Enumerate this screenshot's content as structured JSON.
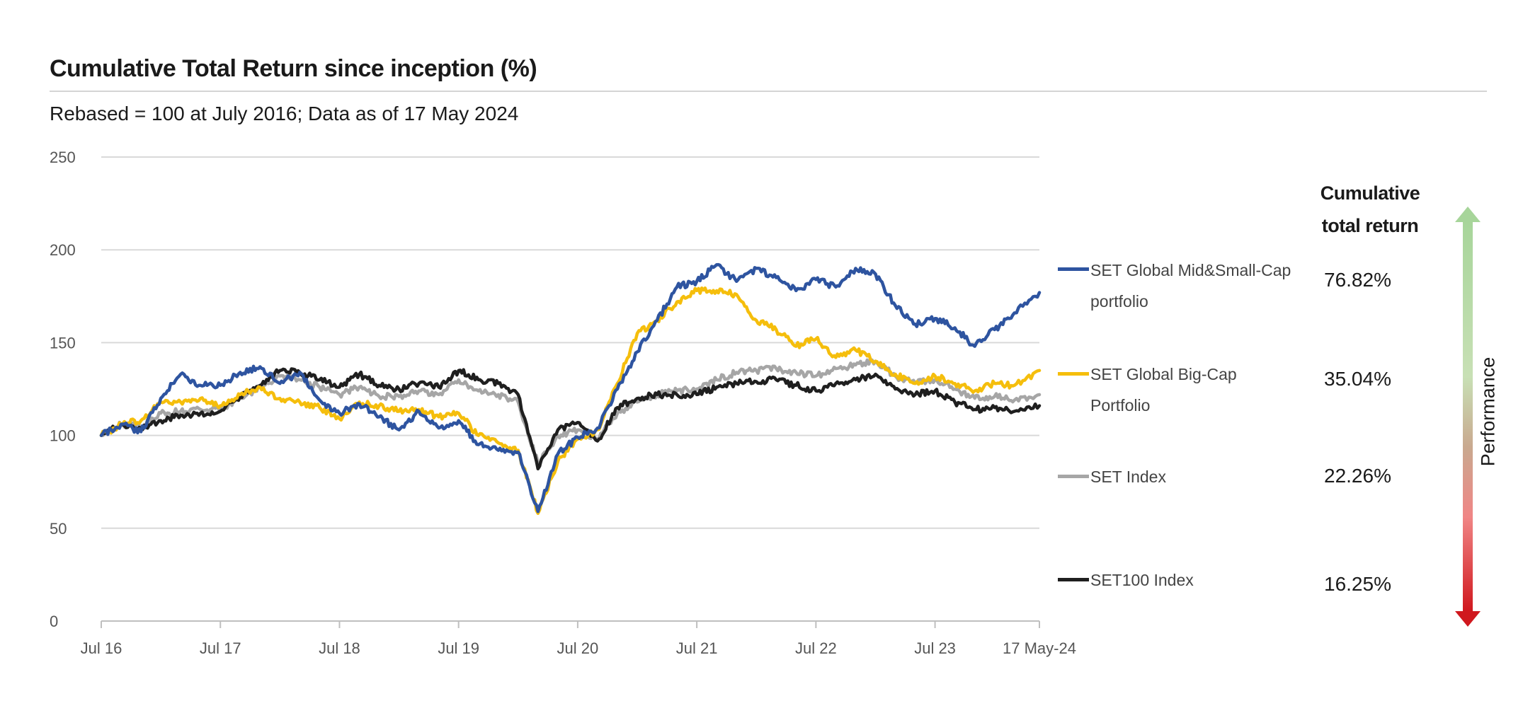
{
  "header": {
    "title": "Cumulative Total Return since inception (%)",
    "subtitle": "Rebased = 100 at July 2016; Data as of 17 May 2024"
  },
  "returns_panel": {
    "heading_line1": "Cumulative",
    "heading_line2": "total return",
    "performance_label": "Performance"
  },
  "chart_data": {
    "type": "line",
    "ylim": [
      0,
      250
    ],
    "yticks": [
      0,
      50,
      100,
      150,
      200,
      250
    ],
    "xlim": [
      "2016-07",
      "2024-05-17"
    ],
    "xticks": [
      {
        "date": "2016-07",
        "label": "Jul 16"
      },
      {
        "date": "2017-07",
        "label": "Jul 17"
      },
      {
        "date": "2018-07",
        "label": "Jul 18"
      },
      {
        "date": "2019-07",
        "label": "Jul 19"
      },
      {
        "date": "2020-07",
        "label": "Jul 20"
      },
      {
        "date": "2021-07",
        "label": "Jul 21"
      },
      {
        "date": "2022-07",
        "label": "Jul 22"
      },
      {
        "date": "2023-07",
        "label": "Jul 23"
      },
      {
        "date": "2024-05-17",
        "label": "17 May-24"
      }
    ],
    "grid": true,
    "legend_position": "right",
    "series": [
      {
        "name_line1": "SET Global Mid&Small-Cap",
        "name_line2": "portfolio",
        "color": "#2e54a0",
        "cumulative_return": "76.82%",
        "points": [
          [
            "2016-07",
            100
          ],
          [
            "2016-09",
            106
          ],
          [
            "2016-11",
            102
          ],
          [
            "2017-01",
            120
          ],
          [
            "2017-03",
            133
          ],
          [
            "2017-05",
            127
          ],
          [
            "2017-07",
            127
          ],
          [
            "2017-09",
            134
          ],
          [
            "2017-11",
            137
          ],
          [
            "2018-01",
            128
          ],
          [
            "2018-03",
            134
          ],
          [
            "2018-05",
            119
          ],
          [
            "2018-07",
            112
          ],
          [
            "2018-09",
            117
          ],
          [
            "2018-11",
            110
          ],
          [
            "2019-01",
            103
          ],
          [
            "2019-03",
            113
          ],
          [
            "2019-05",
            104
          ],
          [
            "2019-07",
            108
          ],
          [
            "2019-09",
            95
          ],
          [
            "2019-11",
            92
          ],
          [
            "2020-01",
            91
          ],
          [
            "2020-03",
            59
          ],
          [
            "2020-05",
            90
          ],
          [
            "2020-07",
            99
          ],
          [
            "2020-09",
            104
          ],
          [
            "2020-11",
            125
          ],
          [
            "2021-01",
            145
          ],
          [
            "2021-03",
            162
          ],
          [
            "2021-05",
            180
          ],
          [
            "2021-07",
            183
          ],
          [
            "2021-09",
            192
          ],
          [
            "2021-11",
            183
          ],
          [
            "2022-01",
            190
          ],
          [
            "2022-03",
            185
          ],
          [
            "2022-05",
            178
          ],
          [
            "2022-07",
            184
          ],
          [
            "2022-09",
            180
          ],
          [
            "2022-11",
            190
          ],
          [
            "2023-01",
            187
          ],
          [
            "2023-03",
            170
          ],
          [
            "2023-05",
            160
          ],
          [
            "2023-07",
            163
          ],
          [
            "2023-09",
            158
          ],
          [
            "2023-11",
            148
          ],
          [
            "2024-01",
            157
          ],
          [
            "2024-03",
            166
          ],
          [
            "2024-05-17",
            177
          ]
        ]
      },
      {
        "name_line1": "SET Global Big-Cap",
        "name_line2": "Portfolio",
        "color": "#f5be0c",
        "cumulative_return": "35.04%",
        "points": [
          [
            "2016-07",
            100
          ],
          [
            "2016-09",
            106
          ],
          [
            "2016-11",
            108
          ],
          [
            "2017-01",
            118
          ],
          [
            "2017-03",
            118
          ],
          [
            "2017-05",
            120
          ],
          [
            "2017-07",
            116
          ],
          [
            "2017-09",
            122
          ],
          [
            "2017-11",
            126
          ],
          [
            "2018-01",
            120
          ],
          [
            "2018-03",
            118
          ],
          [
            "2018-05",
            115
          ],
          [
            "2018-07",
            109
          ],
          [
            "2018-09",
            118
          ],
          [
            "2018-11",
            116
          ],
          [
            "2019-01",
            113
          ],
          [
            "2019-03",
            114
          ],
          [
            "2019-05",
            110
          ],
          [
            "2019-07",
            112
          ],
          [
            "2019-09",
            100
          ],
          [
            "2019-11",
            96
          ],
          [
            "2020-01",
            92
          ],
          [
            "2020-03",
            58
          ],
          [
            "2020-05",
            86
          ],
          [
            "2020-07",
            98
          ],
          [
            "2020-09",
            103
          ],
          [
            "2020-11",
            128
          ],
          [
            "2021-01",
            155
          ],
          [
            "2021-03",
            162
          ],
          [
            "2021-05",
            172
          ],
          [
            "2021-07",
            178
          ],
          [
            "2021-09",
            178
          ],
          [
            "2021-11",
            176
          ],
          [
            "2022-01",
            162
          ],
          [
            "2022-03",
            157
          ],
          [
            "2022-05",
            148
          ],
          [
            "2022-07",
            152
          ],
          [
            "2022-09",
            142
          ],
          [
            "2022-11",
            146
          ],
          [
            "2023-01",
            140
          ],
          [
            "2023-03",
            133
          ],
          [
            "2023-05",
            128
          ],
          [
            "2023-07",
            132
          ],
          [
            "2023-09",
            128
          ],
          [
            "2023-11",
            124
          ],
          [
            "2024-01",
            128
          ],
          [
            "2024-03",
            127
          ],
          [
            "2024-05-17",
            135
          ]
        ]
      },
      {
        "name_line1": "SET Index",
        "name_line2": "",
        "color": "#a6a6a6",
        "cumulative_return": "22.26%",
        "points": [
          [
            "2016-07",
            100
          ],
          [
            "2016-09",
            106
          ],
          [
            "2016-11",
            105
          ],
          [
            "2017-01",
            112
          ],
          [
            "2017-03",
            113
          ],
          [
            "2017-05",
            114
          ],
          [
            "2017-07",
            114
          ],
          [
            "2017-09",
            120
          ],
          [
            "2017-11",
            126
          ],
          [
            "2018-01",
            132
          ],
          [
            "2018-03",
            130
          ],
          [
            "2018-05",
            126
          ],
          [
            "2018-07",
            122
          ],
          [
            "2018-09",
            126
          ],
          [
            "2018-11",
            121
          ],
          [
            "2019-01",
            121
          ],
          [
            "2019-03",
            124
          ],
          [
            "2019-05",
            122
          ],
          [
            "2019-07",
            130
          ],
          [
            "2019-09",
            124
          ],
          [
            "2019-11",
            122
          ],
          [
            "2020-01",
            118
          ],
          [
            "2020-03",
            85
          ],
          [
            "2020-05",
            100
          ],
          [
            "2020-07",
            103
          ],
          [
            "2020-09",
            98
          ],
          [
            "2020-11",
            112
          ],
          [
            "2021-01",
            118
          ],
          [
            "2021-03",
            122
          ],
          [
            "2021-05",
            124
          ],
          [
            "2021-07",
            125
          ],
          [
            "2021-09",
            130
          ],
          [
            "2021-11",
            134
          ],
          [
            "2022-01",
            135
          ],
          [
            "2022-03",
            136
          ],
          [
            "2022-05",
            134
          ],
          [
            "2022-07",
            132
          ],
          [
            "2022-09",
            136
          ],
          [
            "2022-11",
            138
          ],
          [
            "2023-01",
            140
          ],
          [
            "2023-03",
            132
          ],
          [
            "2023-05",
            128
          ],
          [
            "2023-07",
            130
          ],
          [
            "2023-09",
            125
          ],
          [
            "2023-11",
            120
          ],
          [
            "2024-01",
            121
          ],
          [
            "2024-03",
            119
          ],
          [
            "2024-05-17",
            122
          ]
        ]
      },
      {
        "name_line1": "SET100 Index",
        "name_line2": "",
        "color": "#1f1f1f",
        "cumulative_return": "16.25%",
        "points": [
          [
            "2016-07",
            100
          ],
          [
            "2016-09",
            106
          ],
          [
            "2016-11",
            104
          ],
          [
            "2017-01",
            108
          ],
          [
            "2017-03",
            111
          ],
          [
            "2017-05",
            112
          ],
          [
            "2017-07",
            113
          ],
          [
            "2017-09",
            121
          ],
          [
            "2017-11",
            127
          ],
          [
            "2018-01",
            135
          ],
          [
            "2018-03",
            134
          ],
          [
            "2018-05",
            130
          ],
          [
            "2018-07",
            126
          ],
          [
            "2018-09",
            133
          ],
          [
            "2018-11",
            127
          ],
          [
            "2019-01",
            125
          ],
          [
            "2019-03",
            128
          ],
          [
            "2019-05",
            126
          ],
          [
            "2019-07",
            135
          ],
          [
            "2019-09",
            130
          ],
          [
            "2019-11",
            128
          ],
          [
            "2020-01",
            122
          ],
          [
            "2020-03",
            82
          ],
          [
            "2020-05",
            103
          ],
          [
            "2020-07",
            107
          ],
          [
            "2020-09",
            97
          ],
          [
            "2020-11",
            115
          ],
          [
            "2021-01",
            120
          ],
          [
            "2021-03",
            122
          ],
          [
            "2021-05",
            122
          ],
          [
            "2021-07",
            122
          ],
          [
            "2021-09",
            126
          ],
          [
            "2021-11",
            128
          ],
          [
            "2022-01",
            129
          ],
          [
            "2022-03",
            130
          ],
          [
            "2022-05",
            127
          ],
          [
            "2022-07",
            124
          ],
          [
            "2022-09",
            128
          ],
          [
            "2022-11",
            130
          ],
          [
            "2023-01",
            133
          ],
          [
            "2023-03",
            125
          ],
          [
            "2023-05",
            122
          ],
          [
            "2023-07",
            124
          ],
          [
            "2023-09",
            118
          ],
          [
            "2023-11",
            114
          ],
          [
            "2024-01",
            115
          ],
          [
            "2024-03",
            113
          ],
          [
            "2024-05-17",
            116
          ]
        ]
      }
    ]
  }
}
